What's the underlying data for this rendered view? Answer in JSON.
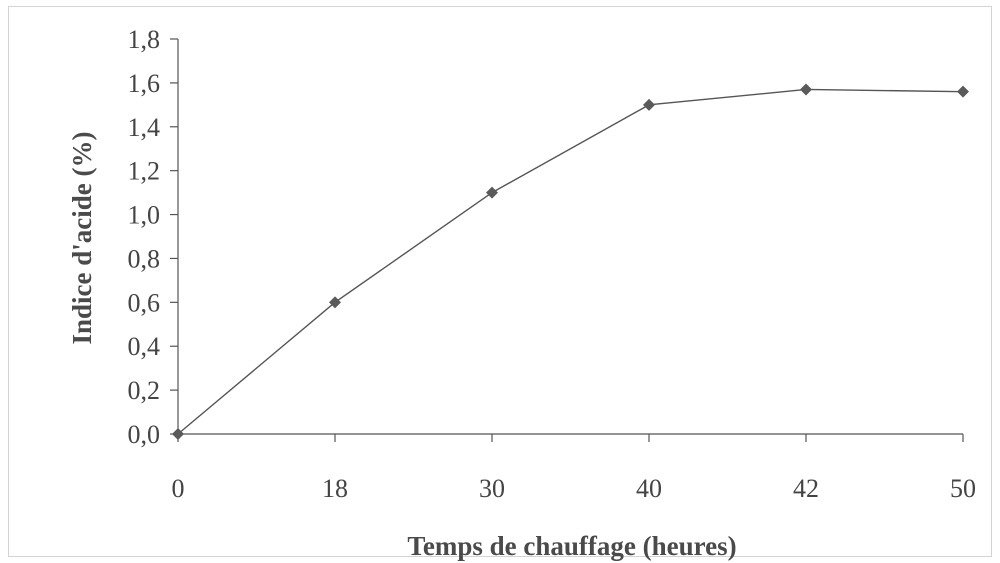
{
  "chart_data": {
    "type": "line",
    "categories": [
      "0",
      "18",
      "30",
      "40",
      "42",
      "50"
    ],
    "series": [
      {
        "values": [
          0.0,
          0.6,
          1.1,
          1.5,
          1.57,
          1.56
        ]
      }
    ],
    "xlabel": "Temps de chauffage (heures)",
    "ylabel": "Indice d'acide (%)",
    "ylim": [
      0,
      1.8
    ],
    "yticks": [
      "0,0",
      "0,2",
      "0,4",
      "0,6",
      "0,8",
      "1,0",
      "1,2",
      "1,4",
      "1,6",
      "1,8"
    ],
    "grid": false,
    "legend": "none",
    "colors": {
      "line": "#555555",
      "marker": "#5a5a5a",
      "axis": "#555555",
      "text": "#444444"
    }
  }
}
